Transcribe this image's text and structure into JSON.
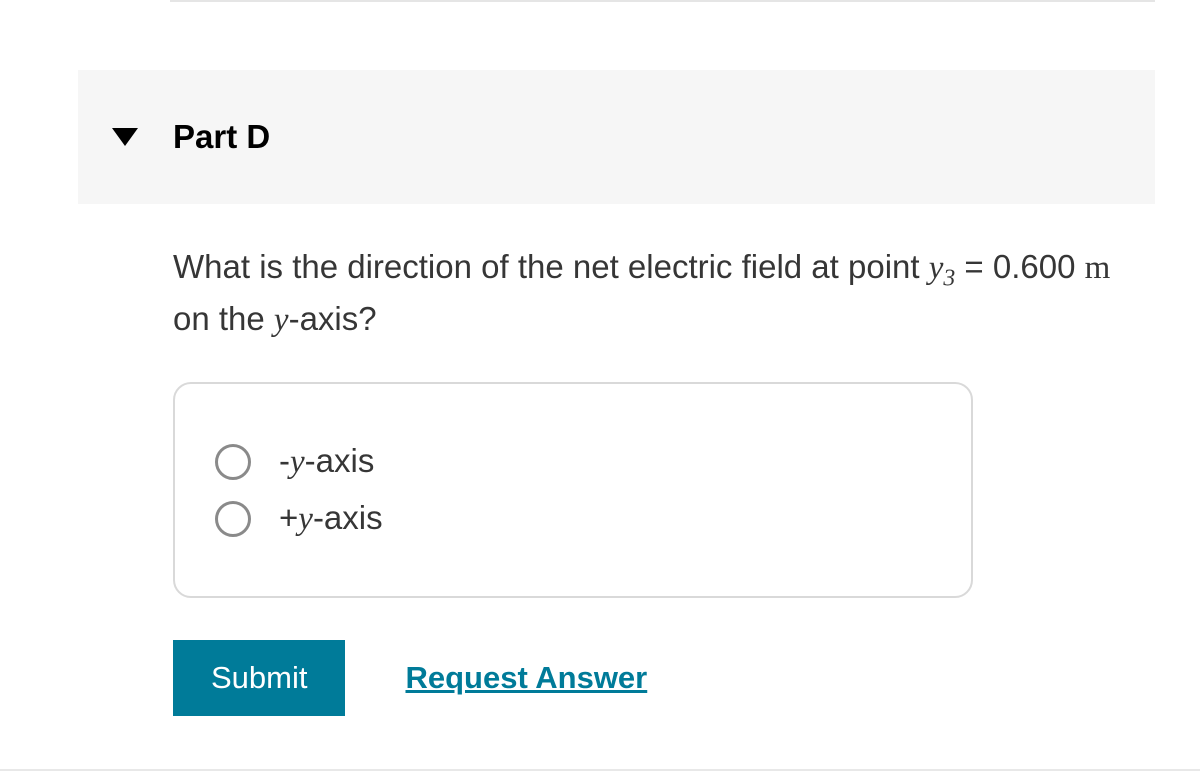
{
  "colors": {
    "header_bg": "#f6f6f6",
    "text": "#363636",
    "accent": "#007b99",
    "border": "#d9d9d9",
    "radio_border": "#8a8a8a"
  },
  "part": {
    "title": "Part D"
  },
  "question": {
    "prefix": "What is the direction of the net electric field at point ",
    "var": "y",
    "sub": "3",
    "eq": " = 0.600 ",
    "unit": "m",
    "mid": " on the ",
    "var2": "y",
    "suffix": "-axis?"
  },
  "options": [
    {
      "prefix": "-",
      "var": "y",
      "suffix": "-axis"
    },
    {
      "prefix": "+",
      "var": "y",
      "suffix": "-axis"
    }
  ],
  "actions": {
    "submit": "Submit",
    "request": "Request Answer"
  }
}
